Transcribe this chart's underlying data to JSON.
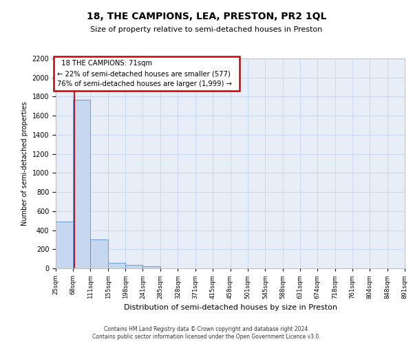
{
  "title1": "18, THE CAMPIONS, LEA, PRESTON, PR2 1QL",
  "title2": "Size of property relative to semi-detached houses in Preston",
  "xlabel": "Distribution of semi-detached houses by size in Preston",
  "ylabel": "Number of semi-detached properties",
  "footer1": "Contains HM Land Registry data © Crown copyright and database right 2024.",
  "footer2": "Contains public sector information licensed under the Open Government Licence v3.0.",
  "annotation_line1": "18 THE CAMPIONS: 71sqm",
  "annotation_line2": "← 22% of semi-detached houses are smaller (577)",
  "annotation_line3": "76% of semi-detached houses are larger (1,999) →",
  "bin_edges": [
    25,
    68,
    111,
    155,
    198,
    241,
    285,
    328,
    371,
    415,
    458,
    501,
    545,
    588,
    631,
    674,
    718,
    761,
    804,
    848,
    891
  ],
  "bar_heights": [
    490,
    1770,
    300,
    55,
    35,
    25,
    0,
    0,
    0,
    0,
    0,
    0,
    0,
    0,
    0,
    0,
    0,
    0,
    0,
    0
  ],
  "bar_color": "#c5d8f0",
  "bar_edge_color": "#5b8fd4",
  "vline_color": "#cc0000",
  "vline_x": 71,
  "ylim": [
    0,
    2200
  ],
  "yticks": [
    0,
    200,
    400,
    600,
    800,
    1000,
    1200,
    1400,
    1600,
    1800,
    2000,
    2200
  ],
  "grid_color": "#c8d8ee",
  "bg_color": "#e8eef8",
  "annotation_box_edge": "#cc0000"
}
